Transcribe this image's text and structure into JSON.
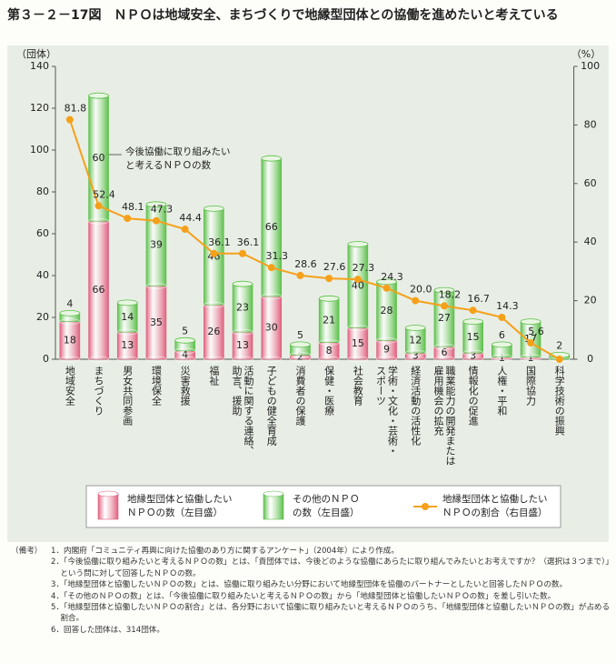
{
  "chart_data": {
    "type": "bar",
    "stacked": true,
    "title": "第３－２－17図　ＮＰＯは地域安全、まちづくりで地縁型団体との協働を進めたいと考えている",
    "y_label": "（団体）",
    "y2_label": "（%）",
    "annotation": "今後協働に取り組みたい\nと考えるＮＰＯの数",
    "categories": [
      "地域安全",
      "まちづくり",
      "男女共同参画",
      "環境保全",
      "災害救援",
      "福祉",
      "活動に関する連絡、\n助言、援助",
      "子どもの健全育成",
      "消費者の保護",
      "保健・医療",
      "社会教育",
      "学術・文化・芸術・\nスポーツ",
      "経済活動の活性化",
      "職業能力の開発または\n雇用機会の拡充",
      "情報化の促進",
      "人権・平和",
      "国際協力",
      "科学技術の振興"
    ],
    "series": [
      {
        "name": "地縁型団体と協働したい\nＮＰＯの数（左目盛）",
        "color": "#e0607e",
        "values": [
          18,
          66,
          13,
          35,
          4,
          26,
          13,
          30,
          2,
          8,
          15,
          9,
          3,
          6,
          3,
          1,
          1,
          0
        ]
      },
      {
        "name": "その他のＮＰＯ\nの数（左目盛）",
        "color": "#5cbf4a",
        "values": [
          4,
          60,
          14,
          39,
          5,
          46,
          23,
          66,
          5,
          21,
          40,
          28,
          12,
          27,
          15,
          6,
          17,
          2
        ]
      },
      {
        "name": "地縁型団体と協働したい\nＮＰＯの割合（右目盛）",
        "color": "#f5a01a",
        "type": "line",
        "axis": "y2",
        "values": [
          81.8,
          52.4,
          48.1,
          47.3,
          44.4,
          36.1,
          36.1,
          31.3,
          28.6,
          27.6,
          27.3,
          24.3,
          20.0,
          18.2,
          16.7,
          14.3,
          5.6,
          0
        ],
        "value_labels": [
          "81.8",
          "52.4",
          "48.1",
          "47.3",
          "44.4",
          "36.1",
          "36.1",
          "31.3",
          "28.6",
          "27.6",
          "27.3",
          "24.3",
          "20.0",
          "18.2",
          "16.7",
          "14.3",
          "5.6",
          null
        ]
      }
    ],
    "ylim": [
      0,
      140
    ],
    "yticks": [
      0,
      20,
      40,
      60,
      80,
      100,
      120,
      140
    ],
    "y2lim": [
      0,
      100
    ],
    "y2ticks": [
      0,
      20,
      40,
      60,
      80,
      100
    ]
  },
  "notes": {
    "heading": "（備考）",
    "items": [
      "1．内閣府「コミュニティ再興に向けた協働のあり方に関するアンケート」（2004年）により作成。",
      "2．「今後協働に取り組みたいと考えるＮＰＯの数」とは、「貴団体では、今後どのような協働にあらたに取り組んでみたいとお考えですか？（選択は３つまで）」という問に対して回答したＮＰＯの数。",
      "3．「地縁型団体と協働したいＮＰＯの数」とは、協働に取り組みたい分野において地縁型団体を協働のパートナーとしたいと回答したＮＰＯの数。",
      "4．「その他のＮＰＯの数」とは、「今後協働に取り組みたいと考えるＮＰＯの数」から「地縁型団体と協働したいＮＰＯの数」を差し引いた数。",
      "5．「地縁型団体と協働したいＮＰＯの割合」とは、各分野において協働に取り組みたいと考えるＮＰＯのうち、「地縁型団体と協働したいＮＰＯの数」が占める割合。",
      "6．回答した団体は、314団体。"
    ]
  }
}
